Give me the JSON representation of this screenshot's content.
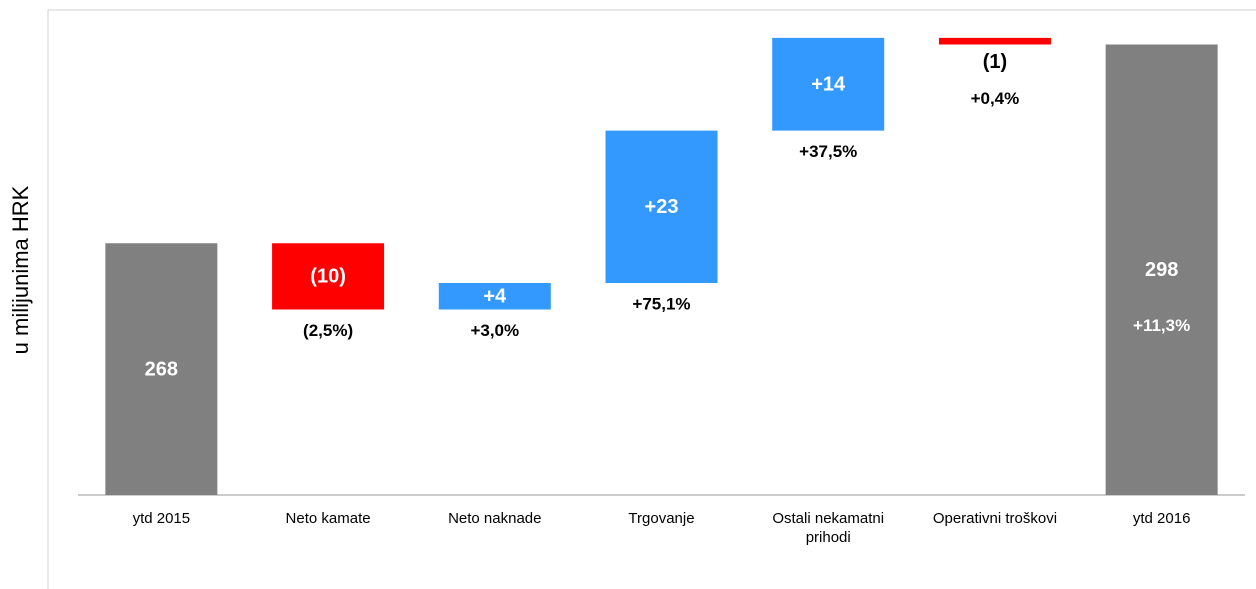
{
  "chart_data": {
    "type": "waterfall",
    "y_label": "u milijunima HRK",
    "categories": [
      "ytd 2015",
      "Neto kamate",
      "Neto naknade",
      "Trgovanje",
      "Ostali nekamatni prihodi",
      "Operativni troškovi",
      "ytd 2016"
    ],
    "measure": [
      "absolute",
      "relative",
      "relative",
      "relative",
      "relative",
      "relative",
      "total"
    ],
    "values": [
      268,
      -10,
      4,
      23,
      14,
      -1,
      298
    ],
    "value_labels": [
      "268",
      "(10)",
      "+4",
      "+23",
      "+14",
      "(1)",
      "298"
    ],
    "change_labels": [
      null,
      "(2,5%)",
      "+3,0%",
      "+75,1%",
      "+37,5%",
      "+0,4%",
      "+11,3%"
    ],
    "colors": {
      "total": "#808080",
      "increase": "#3399ff",
      "decrease": "#ff0000"
    },
    "ylim": [
      230,
      302
    ]
  }
}
